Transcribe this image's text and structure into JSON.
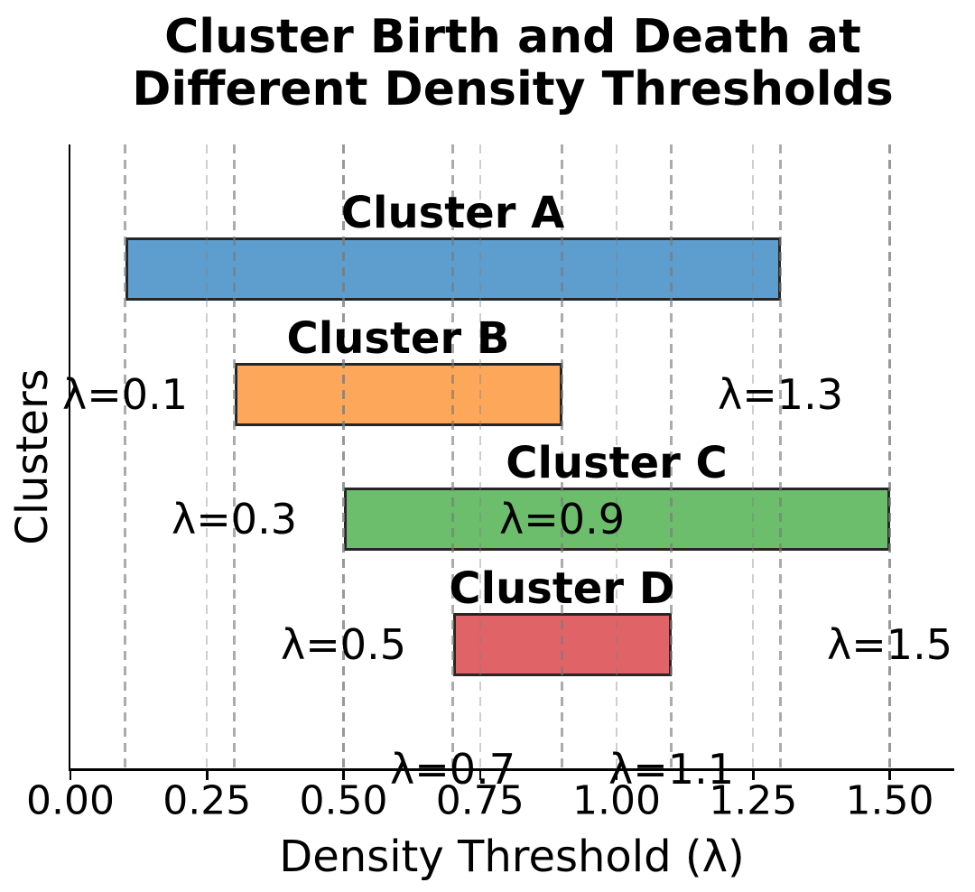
{
  "chart_data": {
    "type": "bar",
    "variant": "horizontal-interval (cluster persistence / gantt)",
    "title_line1": "Cluster Birth and Death at",
    "title_line2": "Different Density Thresholds",
    "xlabel": "Density Threshold (λ)",
    "ylabel": "Clusters",
    "x_tick_values": [
      0.0,
      0.25,
      0.5,
      0.75,
      1.0,
      1.25,
      1.5
    ],
    "x_tick_labels": [
      "0.00",
      "0.25",
      "0.50",
      "0.75",
      "1.00",
      "1.25",
      "1.50"
    ],
    "xlim": [
      0.0,
      1.618
    ],
    "grid": {
      "on": true,
      "style": "dashed-vertical",
      "at_ticks": true,
      "at_events": true
    },
    "colors": {
      "bar_edge": "#262626",
      "axis": "#000000",
      "text": "#000000",
      "background": "#ffffff"
    },
    "series": [
      {
        "name": "Cluster A",
        "birth": 0.1,
        "death": 1.3,
        "birth_label": "λ=0.1",
        "death_label": "λ=1.3",
        "color": "#5e9ecf"
      },
      {
        "name": "Cluster B",
        "birth": 0.3,
        "death": 0.9,
        "birth_label": "λ=0.3",
        "death_label": "λ=0.9",
        "color": "#fda75a"
      },
      {
        "name": "Cluster C",
        "birth": 0.5,
        "death": 1.5,
        "birth_label": "λ=0.5",
        "death_label": "λ=1.5",
        "color": "#6cbd6c"
      },
      {
        "name": "Cluster D",
        "birth": 0.7,
        "death": 1.1,
        "birth_label": "λ=0.7",
        "death_label": "λ=1.1",
        "color": "#e06467"
      }
    ]
  }
}
